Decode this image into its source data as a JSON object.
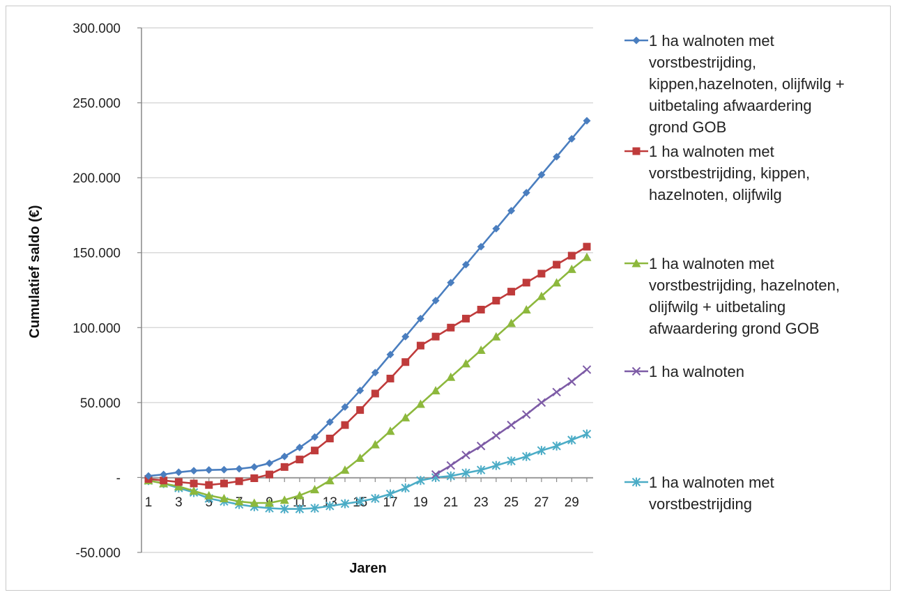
{
  "chart_data": {
    "type": "line",
    "xlabel": "Jaren",
    "ylabel": "Cumulatief saldo (€)",
    "ylim": [
      -50000,
      300000
    ],
    "yticks": [
      {
        "value": 300000,
        "label": "300.000"
      },
      {
        "value": 250000,
        "label": "250.000"
      },
      {
        "value": 200000,
        "label": "200.000"
      },
      {
        "value": 150000,
        "label": "150.000"
      },
      {
        "value": 100000,
        "label": "100.000"
      },
      {
        "value": 50000,
        "label": "50.000"
      },
      {
        "value": 0,
        "label": "-"
      },
      {
        "value": -50000,
        "label": "-50.000"
      }
    ],
    "xticks": [
      "1",
      "3",
      "5",
      "7",
      "9",
      "11",
      "13",
      "15",
      "17",
      "19",
      "21",
      "23",
      "25",
      "27",
      "29"
    ],
    "x": [
      1,
      2,
      3,
      4,
      5,
      6,
      7,
      8,
      9,
      10,
      11,
      12,
      13,
      14,
      15,
      16,
      17,
      18,
      19,
      20,
      21,
      22,
      23,
      24,
      25,
      26,
      27,
      28,
      29,
      30
    ],
    "grid": true,
    "legend_position": "right",
    "series": [
      {
        "name": [
          "1 ha walnoten met",
          "vorstbestrijding,",
          "kippen,hazelnoten, olijfwilg +",
          "uitbetaling afwaardering",
          "grond GOB"
        ],
        "color": "#4a7ebf",
        "marker": "diamond",
        "values": [
          1000,
          2000,
          3500,
          4500,
          5000,
          5200,
          5800,
          7000,
          9500,
          14000,
          20000,
          27000,
          37000,
          47000,
          58000,
          70000,
          82000,
          94000,
          106000,
          118000,
          130000,
          142000,
          154000,
          166000,
          178000,
          190000,
          202000,
          214000,
          226000,
          238000
        ]
      },
      {
        "name": [
          "1 ha walnoten met",
          "vorstbestrijding, kippen,",
          "hazelnoten, olijfwilg"
        ],
        "color": "#bf3b3b",
        "marker": "square",
        "values": [
          -1000,
          -2000,
          -3000,
          -4000,
          -5000,
          -4000,
          -2500,
          -500,
          2000,
          7000,
          12000,
          18000,
          26000,
          35000,
          45000,
          56000,
          66000,
          77000,
          88000,
          94000,
          100000,
          106000,
          112000,
          118000,
          124000,
          130000,
          136000,
          142000,
          148000,
          154000
        ]
      },
      {
        "name": [
          "1 ha walnoten met",
          "vorstbestrijding, hazelnoten,",
          "olijfwilg + uitbetaling",
          "afwaardering grond GOB"
        ],
        "color": "#8db83d",
        "marker": "triangle",
        "values": [
          -2000,
          -4000,
          -6000,
          -9000,
          -12000,
          -14000,
          -16000,
          -17000,
          -17000,
          -15000,
          -12000,
          -8000,
          -2000,
          5000,
          13000,
          22000,
          31000,
          40000,
          49000,
          58000,
          67000,
          76000,
          85000,
          94000,
          103000,
          112000,
          121000,
          130000,
          139000,
          147000
        ]
      },
      {
        "name": [
          "1 ha walnoten"
        ],
        "color": "#7d5ba6",
        "marker": "x",
        "values": [
          null,
          null,
          null,
          null,
          null,
          null,
          null,
          null,
          null,
          null,
          null,
          null,
          null,
          null,
          null,
          null,
          null,
          null,
          null,
          2000,
          8000,
          15000,
          21000,
          28000,
          35000,
          42000,
          50000,
          57000,
          64000,
          72000
        ]
      },
      {
        "name": [
          "1 ha walnoten met",
          "vorstbestrijding"
        ],
        "color": "#4bacc6",
        "marker": "star",
        "values": [
          -2000,
          -4000,
          -7000,
          -10000,
          -14000,
          -16000,
          -18000,
          -19500,
          -20500,
          -21000,
          -21000,
          -20500,
          -19000,
          -17500,
          -16000,
          -14000,
          -11000,
          -7000,
          -2000,
          0,
          1000,
          3000,
          5000,
          8000,
          11000,
          14000,
          18000,
          21000,
          25000,
          29000
        ]
      }
    ]
  }
}
